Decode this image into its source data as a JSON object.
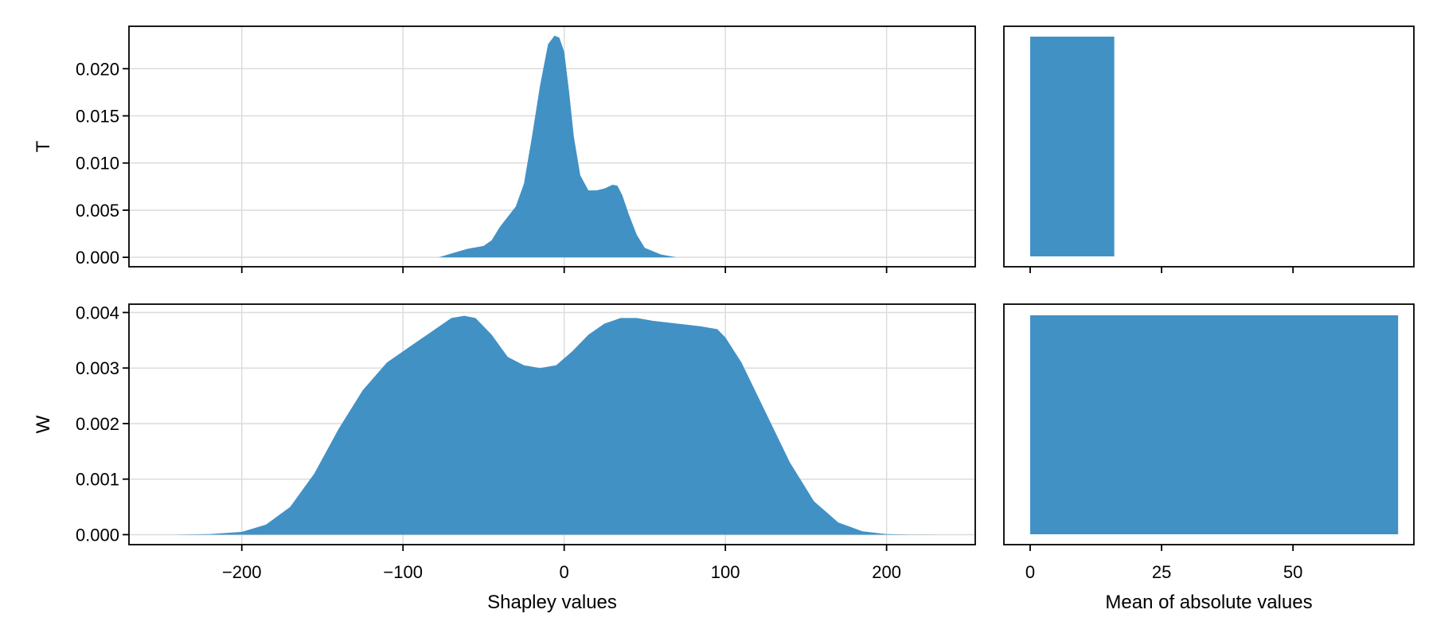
{
  "colors": {
    "fill": "#3b8dc3",
    "grid": "#dcdcdc",
    "frame": "#000000"
  },
  "chart_data": [
    {
      "type": "area",
      "panel": "top-left",
      "ylabel": "T",
      "xlabel": "",
      "xlim": [
        -270,
        255
      ],
      "ylim": [
        -0.001,
        0.0245
      ],
      "xticks": [
        -200,
        -100,
        0,
        100,
        200
      ],
      "xtick_labels_visible": false,
      "yticks": [
        0.0,
        0.005,
        0.01,
        0.015,
        0.02
      ],
      "ytick_labels": [
        "0.000",
        "0.005",
        "0.010",
        "0.015",
        "0.020"
      ],
      "grid": true,
      "series": [
        {
          "x": [
            -78,
            -70,
            -60,
            -50,
            -45,
            -40,
            -35,
            -30,
            -25,
            -20,
            -15,
            -10,
            -6,
            -3,
            0,
            3,
            6,
            10,
            15,
            20,
            25,
            30,
            33,
            36,
            40,
            45,
            50,
            60,
            70
          ],
          "y": [
            0.0,
            0.0004,
            0.0009,
            0.0012,
            0.0018,
            0.0032,
            0.0043,
            0.0054,
            0.0078,
            0.0128,
            0.0182,
            0.0226,
            0.0235,
            0.0233,
            0.0218,
            0.0176,
            0.0128,
            0.0087,
            0.0071,
            0.0071,
            0.0073,
            0.0077,
            0.0076,
            0.0066,
            0.0046,
            0.0024,
            0.001,
            0.0003,
            0.0
          ]
        }
      ]
    },
    {
      "type": "bar",
      "panel": "top-right",
      "xlim": [
        -5,
        73
      ],
      "xticks": [
        0,
        25,
        50
      ],
      "xtick_labels_visible": false,
      "values": [
        16
      ]
    },
    {
      "type": "area",
      "panel": "bottom-left",
      "ylabel": "W",
      "xlabel": "Shapley values",
      "xlim": [
        -270,
        255
      ],
      "ylim": [
        -0.00018,
        0.00415
      ],
      "xticks": [
        -200,
        -100,
        0,
        100,
        200
      ],
      "xtick_labels": [
        "−200",
        "−100",
        "0",
        "100",
        "200"
      ],
      "yticks": [
        0.0,
        0.001,
        0.002,
        0.003,
        0.004
      ],
      "ytick_labels": [
        "0.000",
        "0.001",
        "0.002",
        "0.003",
        "0.004"
      ],
      "grid": true,
      "series": [
        {
          "x": [
            -240,
            -220,
            -200,
            -185,
            -170,
            -155,
            -140,
            -125,
            -110,
            -95,
            -80,
            -70,
            -62,
            -55,
            -45,
            -35,
            -25,
            -15,
            -5,
            5,
            15,
            25,
            35,
            45,
            55,
            70,
            85,
            95,
            100,
            110,
            120,
            130,
            140,
            155,
            170,
            185,
            200,
            215,
            230
          ],
          "y": [
            0.0,
            1e-05,
            5e-05,
            0.00018,
            0.0005,
            0.0011,
            0.0019,
            0.0026,
            0.0031,
            0.0034,
            0.0037,
            0.0039,
            0.00394,
            0.0039,
            0.0036,
            0.0032,
            0.00305,
            0.003,
            0.00305,
            0.0033,
            0.0036,
            0.0038,
            0.0039,
            0.0039,
            0.00385,
            0.0038,
            0.00375,
            0.0037,
            0.00355,
            0.0031,
            0.0025,
            0.0019,
            0.0013,
            0.0006,
            0.00022,
            6e-05,
            1e-05,
            0.0,
            0.0
          ]
        }
      ]
    },
    {
      "type": "bar",
      "panel": "bottom-right",
      "xlabel": "Mean of absolute values",
      "xlim": [
        -5,
        73
      ],
      "xticks": [
        0,
        25,
        50
      ],
      "xtick_labels": [
        "0",
        "25",
        "50"
      ],
      "values": [
        70
      ]
    }
  ]
}
